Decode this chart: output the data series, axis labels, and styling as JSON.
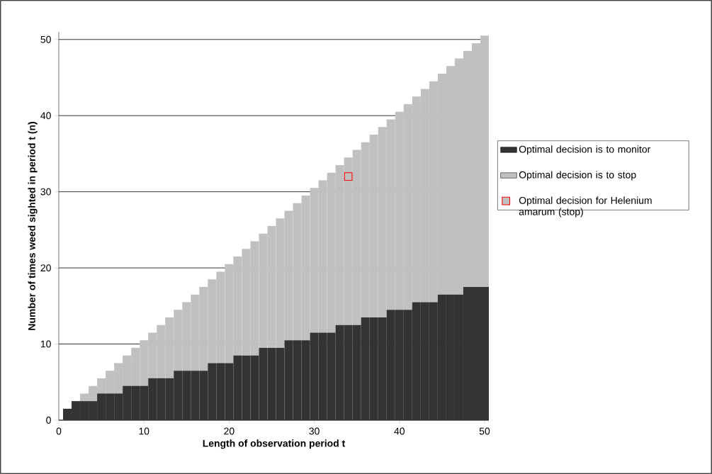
{
  "chart_data": {
    "type": "bar",
    "stacked": true,
    "xlabel": "Length of observation period t",
    "ylabel": "Number of times weed sighted in period t (n)",
    "x": [
      1,
      2,
      3,
      4,
      5,
      6,
      7,
      8,
      9,
      10,
      11,
      12,
      13,
      14,
      15,
      16,
      17,
      18,
      19,
      20,
      21,
      22,
      23,
      24,
      25,
      26,
      27,
      28,
      29,
      30,
      31,
      32,
      33,
      34,
      35,
      36,
      37,
      38,
      39,
      40,
      41,
      42,
      43,
      44,
      45,
      46,
      47,
      48,
      49,
      50
    ],
    "series": [
      {
        "name": "Optimal decision is to monitor",
        "color": "#333333",
        "values": [
          1.5,
          2.5,
          2.5,
          2.5,
          3.5,
          3.5,
          3.5,
          4.5,
          4.5,
          4.5,
          5.5,
          5.5,
          5.5,
          6.5,
          6.5,
          6.5,
          6.5,
          7.5,
          7.5,
          7.5,
          8.5,
          8.5,
          8.5,
          9.5,
          9.5,
          9.5,
          10.5,
          10.5,
          10.5,
          11.5,
          11.5,
          11.5,
          12.5,
          12.5,
          12.5,
          13.5,
          13.5,
          13.5,
          14.5,
          14.5,
          14.5,
          15.5,
          15.5,
          15.5,
          16.5,
          16.5,
          16.5,
          17.5,
          17.5,
          17.5
        ]
      },
      {
        "name": "Optimal decision is to stop",
        "color": "#c0c0c0",
        "values": [
          0,
          0,
          1,
          2,
          2,
          3,
          4,
          4,
          5,
          6,
          6,
          7,
          8,
          8,
          9,
          10,
          11,
          11,
          12,
          13,
          13,
          14,
          15,
          15,
          16,
          17,
          17,
          18,
          19,
          19,
          20,
          21,
          21,
          22,
          23,
          23,
          24,
          25,
          25,
          26,
          27,
          27,
          28,
          29,
          29,
          30,
          31,
          31,
          32,
          33
        ]
      },
      {
        "name": "Optimal decision for Helenium amarum (stop)",
        "type": "scatter",
        "color": "#ff0000",
        "marker": "square",
        "x": [
          34
        ],
        "values": [
          32
        ]
      }
    ],
    "xlim": [
      0,
      50.5
    ],
    "ylim": [
      0,
      51
    ],
    "xticks": [
      0,
      10,
      20,
      30,
      40,
      50
    ],
    "yticks": [
      0,
      10,
      20,
      30,
      40,
      50
    ],
    "grid": "y",
    "legend": "right"
  }
}
